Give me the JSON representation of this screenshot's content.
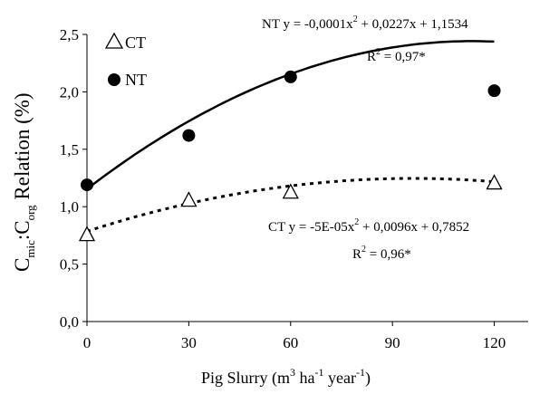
{
  "chart_data": {
    "type": "scatter",
    "xlabel": {
      "main": "Pig Slurry (m",
      "sup1": "3",
      "mid1": " ha",
      "sup2": "-1",
      "mid2": " year",
      "sup3": "-1",
      "end": ")"
    },
    "ylabel": {
      "c1": "C",
      "sub1": "mic",
      "colon": ":C",
      "sub2": "org",
      "rest": " Relation (%)"
    },
    "xlim": [
      0,
      130
    ],
    "ylim": [
      0,
      2.5
    ],
    "xticks": [
      0,
      30,
      60,
      90,
      120
    ],
    "xtick_labels": [
      "0",
      "30",
      "60",
      "90",
      "120"
    ],
    "yticks": [
      0,
      0.5,
      1.0,
      1.5,
      2.0,
      2.5
    ],
    "ytick_labels": [
      "0,0",
      "0,5",
      "1,0",
      "1,5",
      "2,0",
      "2,5"
    ],
    "grid": false,
    "legend_position": "top-left",
    "series": [
      {
        "name": "CT",
        "marker": "triangle-open",
        "line_style": "dotted",
        "x": [
          0,
          30,
          60,
          120
        ],
        "y": [
          0.76,
          1.06,
          1.13,
          1.21
        ],
        "fit": {
          "a": -5e-05,
          "b": 0.0096,
          "c": 0.7852
        },
        "equation": {
          "prefix": "CT y = -5E-05x",
          "sup": "2",
          "suffix": " + 0,0096x + 0,7852",
          "r2_label": "R",
          "r2_sup": "2",
          "r2_value": " = 0,96*"
        }
      },
      {
        "name": "NT",
        "marker": "circle-filled",
        "line_style": "solid",
        "x": [
          0,
          30,
          60,
          120
        ],
        "y": [
          1.19,
          1.62,
          2.13,
          2.01
        ],
        "fit": {
          "a": -0.0001,
          "b": 0.0227,
          "c": 1.1534
        },
        "equation": {
          "prefix": "NT y = -0,0001x",
          "sup": "2",
          "suffix": " + 0,0227x + 1,1534",
          "r2_label": "R",
          "r2_sup": "2",
          "r2_value": " = 0,97*"
        }
      }
    ]
  }
}
